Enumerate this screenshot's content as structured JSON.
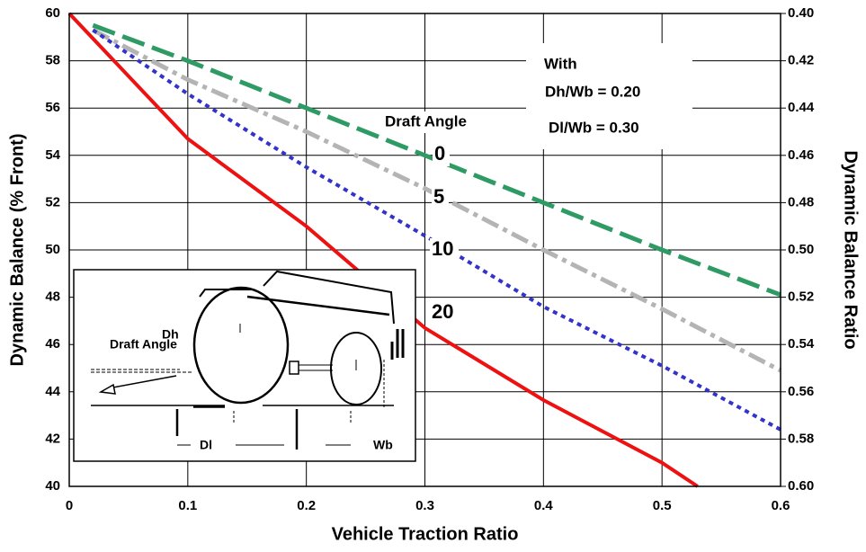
{
  "chart_data": {
    "type": "line",
    "x_label": "Vehicle Traction Ratio",
    "y_label": "Dynamic Balance (% Front)",
    "y2_label": "Dynamic Balance Ratio",
    "xlim": [
      0,
      0.6
    ],
    "xticks": [
      0,
      0.1,
      0.2,
      0.3,
      0.4,
      0.5,
      0.6
    ],
    "ylim": [
      40,
      60
    ],
    "yticks": [
      40,
      42,
      44,
      46,
      48,
      50,
      52,
      54,
      56,
      58,
      60
    ],
    "y2lim": [
      0.6,
      0.4
    ],
    "y2ticks": [
      {
        "value": 0.4,
        "label": "0.40"
      },
      {
        "value": 0.42,
        "label": "0.42"
      },
      {
        "value": 0.44,
        "label": "0.44"
      },
      {
        "value": 0.46,
        "label": "0.46"
      },
      {
        "value": 0.48,
        "label": "0.48"
      },
      {
        "value": 0.5,
        "label": "0.50"
      },
      {
        "value": 0.52,
        "label": "0.52"
      },
      {
        "value": 0.54,
        "label": "0.54"
      },
      {
        "value": 0.56,
        "label": "0.56"
      },
      {
        "value": 0.58,
        "label": "0.58"
      },
      {
        "value": 0.6,
        "label": "0.60"
      }
    ],
    "grid": true,
    "legend_title": "Draft Angle",
    "annotations": [
      "With",
      "Dh/Wb = 0.20",
      "Dl/Wb = 0.30"
    ],
    "inset_labels": [
      "Draft Angle",
      "Dh",
      "Dl",
      "Wb"
    ],
    "series": [
      {
        "name": "0",
        "color": "#2e9a64",
        "dash": "long",
        "x": [
          0.02,
          0.1,
          0.2,
          0.3,
          0.4,
          0.5,
          0.6
        ],
        "values": [
          59.5,
          58,
          56,
          54,
          52,
          50,
          48.1
        ]
      },
      {
        "name": "5",
        "color": "#b4b4b4",
        "dash": "dashdot",
        "x": [
          0.02,
          0.1,
          0.2,
          0.3,
          0.4,
          0.5,
          0.6
        ],
        "values": [
          59.3,
          57.2,
          55,
          52.6,
          50,
          47.5,
          44.9
        ]
      },
      {
        "name": "10",
        "color": "#3333cc",
        "dash": "dot",
        "x": [
          0.02,
          0.1,
          0.2,
          0.3,
          0.4,
          0.5,
          0.6
        ],
        "values": [
          59.3,
          56.6,
          53.5,
          50.6,
          47.6,
          45.1,
          42.4
        ]
      },
      {
        "name": "20",
        "color": "#ee1111",
        "dash": "solid",
        "x": [
          0,
          0.1,
          0.2,
          0.3,
          0.4,
          0.5,
          0.53
        ],
        "values": [
          60,
          54.7,
          51,
          46.7,
          43.65,
          41,
          40
        ]
      }
    ]
  }
}
